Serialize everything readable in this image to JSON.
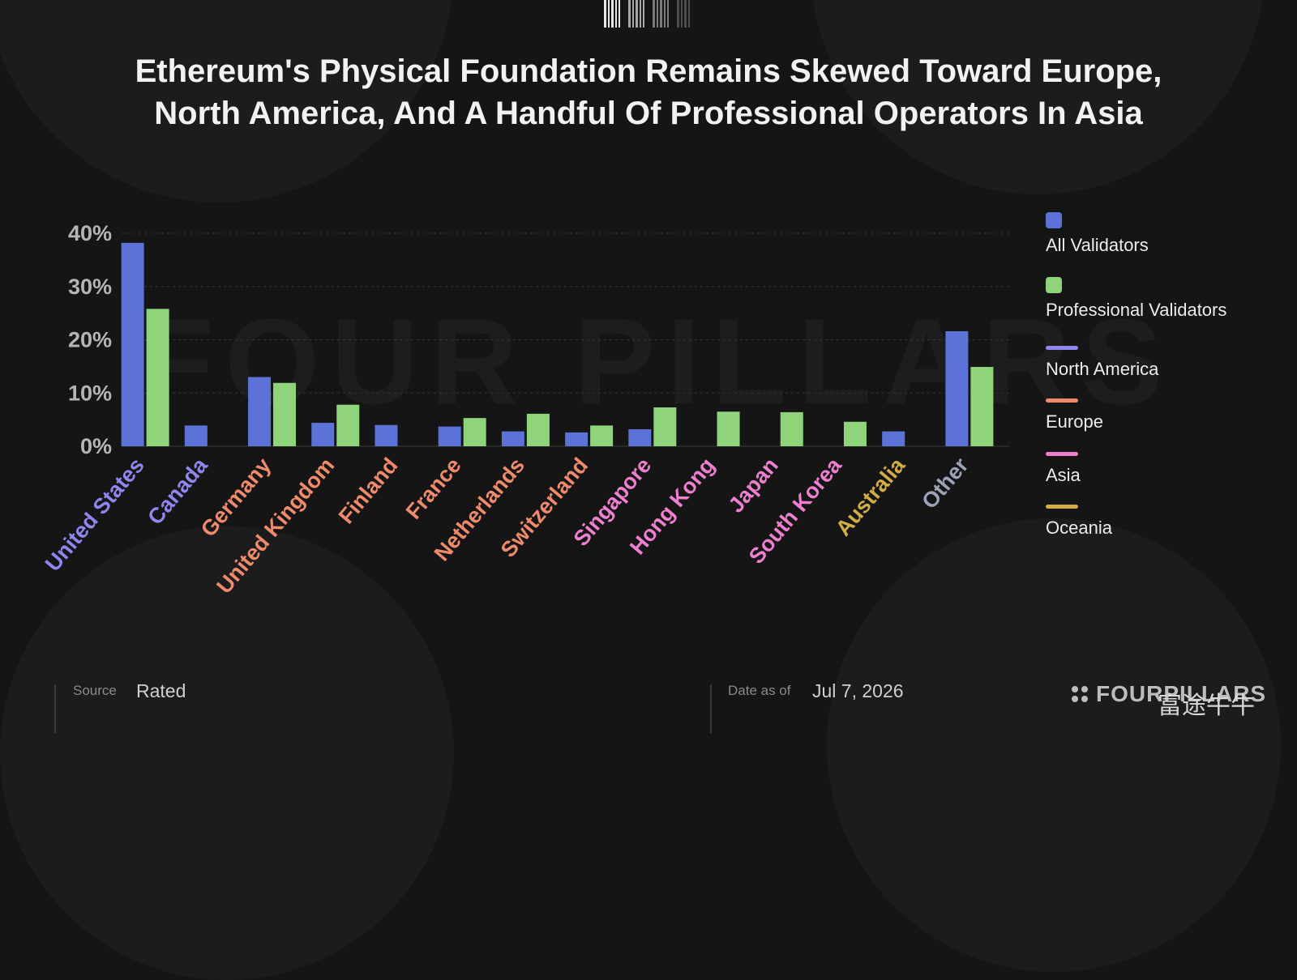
{
  "title_line1": "Ethereum's Physical Foundation Remains Skewed Toward Europe,",
  "title_line2": "North America, And A Handful Of Professional Operators In Asia",
  "watermark": "FOUR PILLARS",
  "colors": {
    "all_validators": "#5b72d6",
    "professional_validators": "#8fd37a",
    "north_america": "#8f86f0",
    "europe": "#f08a6c",
    "asia": "#ef7fcf",
    "oceania": "#d2ae45",
    "other": "#9aa3b7"
  },
  "chart_data": {
    "type": "bar",
    "categories": [
      "United States",
      "Canada",
      "Germany",
      "United Kingdom",
      "Finland",
      "France",
      "Netherlands",
      "Switzerland",
      "Singapore",
      "Hong Kong",
      "Japan",
      "South Korea",
      "Australia",
      "Other"
    ],
    "category_regions": [
      "north_america",
      "north_america",
      "europe",
      "europe",
      "europe",
      "europe",
      "europe",
      "europe",
      "asia",
      "asia",
      "asia",
      "asia",
      "oceania",
      "other"
    ],
    "series": [
      {
        "name": "All Validators",
        "values": [
          38.2,
          3.9,
          13.0,
          4.4,
          4.0,
          3.7,
          2.8,
          2.6,
          3.2,
          0,
          0,
          0,
          2.8,
          21.6
        ]
      },
      {
        "name": "Professional Validators",
        "values": [
          25.8,
          0,
          11.9,
          7.8,
          0,
          5.3,
          6.1,
          3.9,
          7.3,
          6.5,
          6.4,
          4.6,
          0,
          14.9
        ]
      }
    ],
    "yticks": [
      "0%",
      "10%",
      "20%",
      "30%",
      "40%"
    ],
    "ylim": [
      0,
      40
    ],
    "grid": true,
    "legend_position": "right"
  },
  "legend": [
    {
      "key": "all_validators",
      "label": "All Validators",
      "shape": "square"
    },
    {
      "key": "professional_validators",
      "label": "Professional Validators",
      "shape": "square"
    },
    {
      "key": "north_america",
      "label": "North America",
      "shape": "line"
    },
    {
      "key": "europe",
      "label": "Europe",
      "shape": "line"
    },
    {
      "key": "asia",
      "label": "Asia",
      "shape": "line"
    },
    {
      "key": "oceania",
      "label": "Oceania",
      "shape": "line"
    }
  ],
  "footer": {
    "source_label": "Source",
    "source_value": "Rated",
    "date_label": "Date as of",
    "date_value": "Jul 7, 2026",
    "brand": "FOURPILLARS",
    "overlay_mark": "富途牛牛"
  }
}
